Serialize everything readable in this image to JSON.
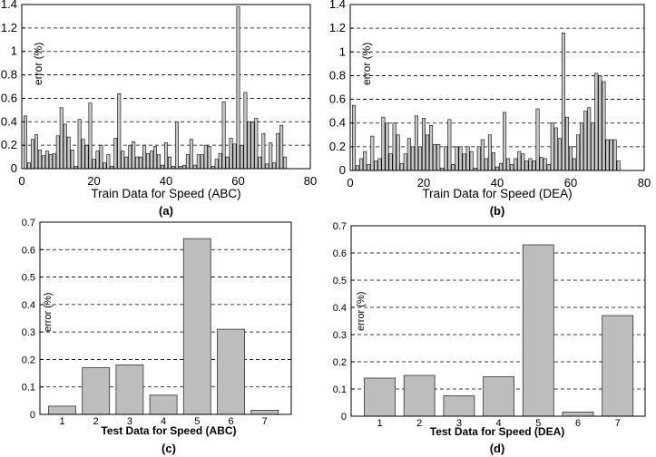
{
  "chart_data": [
    {
      "id": "a",
      "type": "bar",
      "caption": "(a)",
      "xlabel": "Train Data for Speed (ABC)",
      "ylabel": "error (%)",
      "xlim": [
        0,
        80
      ],
      "ylim": [
        0,
        1.4
      ],
      "xticks": [
        "0",
        "20",
        "40",
        "60",
        "80"
      ],
      "yticks": [
        "0",
        "0.2",
        "0.4",
        "0.6",
        "0.8",
        "1",
        "1.2",
        "1.4"
      ],
      "grid": "horizontal dashed",
      "bar_color": "#c8c8c8",
      "x": [
        1,
        2,
        3,
        4,
        5,
        6,
        7,
        8,
        9,
        10,
        11,
        12,
        13,
        14,
        15,
        16,
        17,
        18,
        19,
        20,
        21,
        22,
        23,
        24,
        25,
        26,
        27,
        28,
        29,
        30,
        31,
        32,
        33,
        34,
        35,
        36,
        37,
        38,
        39,
        40,
        41,
        42,
        43,
        44,
        45,
        46,
        47,
        48,
        49,
        50,
        51,
        52,
        53,
        54,
        55,
        56,
        57,
        58,
        59,
        60,
        61,
        62,
        63,
        64,
        65,
        66,
        67,
        68,
        69,
        70,
        71,
        72,
        73
      ],
      "values": [
        0.45,
        0.05,
        0.25,
        0.29,
        0.16,
        0.11,
        0.15,
        0.12,
        0.13,
        0.28,
        0.52,
        0.38,
        0.27,
        0.16,
        0.02,
        0.42,
        0.25,
        0.2,
        0.56,
        0.08,
        0.15,
        0.2,
        0.05,
        0.12,
        0.02,
        0.26,
        0.64,
        0.15,
        0.1,
        0.2,
        0.23,
        0.1,
        0.1,
        0.2,
        0.13,
        0.15,
        0.19,
        0.12,
        0.03,
        0.22,
        0.1,
        0.02,
        0.4,
        0.02,
        0.03,
        0.12,
        0.25,
        0.03,
        0.12,
        0.12,
        0.2,
        0.19,
        0.02,
        0.08,
        0.13,
        0.57,
        0.1,
        0.26,
        0.21,
        1.38,
        0.2,
        0.65,
        0.4,
        0.4,
        0.43,
        0.1,
        0.3,
        0.04,
        0.22,
        0.05,
        0.3,
        0.37,
        0.1
      ]
    },
    {
      "id": "b",
      "type": "bar",
      "caption": "(b)",
      "xlabel": "Train Data for Speed (DEA)",
      "ylabel": "error (%)",
      "xlim": [
        0,
        80
      ],
      "ylim": [
        0,
        1.4
      ],
      "xticks": [
        "0",
        "20",
        "40",
        "60",
        "80"
      ],
      "yticks": [
        "0",
        "0.2",
        "0.4",
        "0.6",
        "0.8",
        "1",
        "1.2",
        "1.4"
      ],
      "grid": "horizontal dashed",
      "bar_color": "#c8c8c8",
      "x": [
        1,
        2,
        3,
        4,
        5,
        6,
        7,
        8,
        9,
        10,
        11,
        12,
        13,
        14,
        15,
        16,
        17,
        18,
        19,
        20,
        21,
        22,
        23,
        24,
        25,
        26,
        27,
        28,
        29,
        30,
        31,
        32,
        33,
        34,
        35,
        36,
        37,
        38,
        39,
        40,
        41,
        42,
        43,
        44,
        45,
        46,
        47,
        48,
        49,
        50,
        51,
        52,
        53,
        54,
        55,
        56,
        57,
        58,
        59,
        60,
        61,
        62,
        63,
        64,
        65,
        66,
        67,
        68,
        69,
        70,
        71,
        72,
        73
      ],
      "values": [
        0.55,
        0.04,
        0.1,
        0.16,
        0.05,
        0.29,
        0.08,
        0.1,
        0.45,
        0.4,
        0.14,
        0.4,
        0.3,
        0.06,
        0.14,
        0.27,
        0.2,
        0.46,
        0.2,
        0.44,
        0.3,
        0.38,
        0.22,
        0.22,
        0.02,
        0.2,
        0.43,
        0.05,
        0.2,
        0.2,
        0.14,
        0.2,
        0.16,
        0.02,
        0.2,
        0.26,
        0.1,
        0.3,
        0.15,
        0.03,
        0.06,
        0.49,
        0.1,
        0.05,
        0.1,
        0.16,
        0.14,
        0.08,
        0.1,
        0.08,
        0.52,
        0.11,
        0.1,
        0.05,
        0.4,
        0.36,
        0.27,
        1.16,
        0.45,
        0.2,
        0.1,
        0.3,
        0.4,
        0.5,
        0.53,
        0.4,
        0.82,
        0.8,
        0.75,
        0.26,
        0.26,
        0.26,
        0.08
      ]
    },
    {
      "id": "c",
      "type": "bar",
      "caption": "(c)",
      "xlabel": "Test Data for Speed (ABC)",
      "ylabel": "error (%)",
      "ylim": [
        0,
        0.7
      ],
      "categories": [
        "1",
        "2",
        "3",
        "4",
        "5",
        "6",
        "7"
      ],
      "yticks": [
        "0",
        "0.1",
        "0.2",
        "0.3",
        "0.4",
        "0.5",
        "0.6",
        "0.7"
      ],
      "grid": "horizontal dashed",
      "bar_color": "#bdbdbd",
      "values": [
        0.03,
        0.17,
        0.18,
        0.07,
        0.64,
        0.31,
        0.015
      ]
    },
    {
      "id": "d",
      "type": "bar",
      "caption": "(d)",
      "xlabel": "Test Data for Speed (DEA)",
      "ylabel": "error (%)",
      "ylim": [
        0,
        0.7
      ],
      "categories": [
        "1",
        "2",
        "3",
        "4",
        "5",
        "6",
        "7"
      ],
      "yticks": [
        "0",
        "0.1",
        "0.2",
        "0.3",
        "0.4",
        "0.5",
        "0.6",
        "0.7"
      ],
      "grid": "horizontal dashed",
      "bar_color": "#bdbdbd",
      "values": [
        0.14,
        0.15,
        0.075,
        0.145,
        0.63,
        0.015,
        0.37
      ]
    }
  ]
}
